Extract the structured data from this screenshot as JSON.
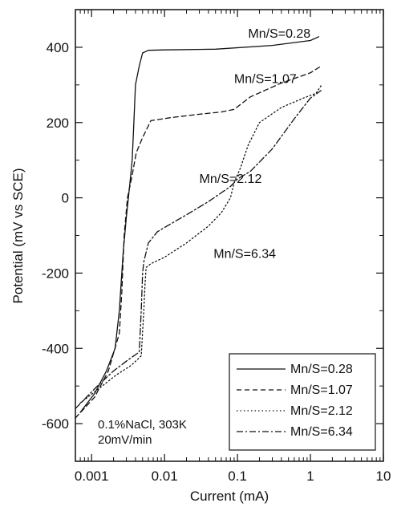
{
  "chart_data": {
    "type": "line",
    "title": "",
    "xlabel": "Current (mA)",
    "ylabel": "Potential (mV vs SCE)",
    "x_scale": "log",
    "xlim": [
      0.0006,
      10
    ],
    "ylim": [
      -700,
      500
    ],
    "x_ticks": [
      0.001,
      0.01,
      0.1,
      1,
      10
    ],
    "x_tick_labels": [
      "0.001",
      "0.01",
      "0.1",
      "1",
      "10"
    ],
    "y_ticks": [
      -600,
      -400,
      -200,
      0,
      200,
      400
    ],
    "y_tick_labels": [
      "-600",
      "-400",
      "-200",
      "0",
      "200",
      "400"
    ],
    "grid": false,
    "legend_position": "bottom-right",
    "note_lines": [
      "0.1%NaCl, 303K",
      "20mV/min"
    ],
    "series": [
      {
        "name": "Mn/S=0.28",
        "style": "solid",
        "x": [
          0.0007,
          0.0011,
          0.0016,
          0.0021,
          0.0024,
          0.0027,
          0.003,
          0.0032,
          0.0034,
          0.0036,
          0.0038,
          0.004,
          0.0045,
          0.005,
          0.006,
          0.01,
          0.05,
          0.3,
          1.0,
          1.3
        ],
        "y": [
          -570,
          -520,
          -460,
          -400,
          -300,
          -150,
          -50,
          0,
          50,
          100,
          200,
          300,
          350,
          385,
          392,
          393,
          395,
          405,
          418,
          428
        ]
      },
      {
        "name": "Mn/S=1.07",
        "style": "dashed",
        "x": [
          0.0006,
          0.0011,
          0.0017,
          0.0024,
          0.0026,
          0.0028,
          0.0031,
          0.0036,
          0.0041,
          0.005,
          0.0065,
          0.012,
          0.03,
          0.06,
          0.09,
          0.15,
          0.4,
          1.0,
          1.4
        ],
        "y": [
          -585,
          -530,
          -460,
          -360,
          -250,
          -100,
          0,
          60,
          120,
          160,
          205,
          213,
          222,
          228,
          235,
          268,
          305,
          332,
          350
        ]
      },
      {
        "name": "Mn/S=2.12",
        "style": "dotted",
        "x": [
          0.0007,
          0.0013,
          0.0022,
          0.0035,
          0.0048,
          0.0052,
          0.0054,
          0.0056,
          0.0065,
          0.01,
          0.02,
          0.04,
          0.06,
          0.08,
          0.09,
          0.11,
          0.14,
          0.2,
          0.4,
          0.8,
          1.2,
          1.4
        ],
        "y": [
          -545,
          -505,
          -470,
          -445,
          -420,
          -300,
          -230,
          -185,
          -175,
          -158,
          -120,
          -75,
          -40,
          0,
          40,
          80,
          140,
          200,
          240,
          265,
          278,
          298
        ]
      },
      {
        "name": "Mn/S=6.34",
        "style": "dashdot",
        "x": [
          0.0006,
          0.0012,
          0.002,
          0.0032,
          0.0045,
          0.0048,
          0.005,
          0.0052,
          0.006,
          0.008,
          0.012,
          0.02,
          0.04,
          0.08,
          0.1,
          0.15,
          0.3,
          0.6,
          1.0,
          1.4
        ],
        "y": [
          -560,
          -500,
          -460,
          -430,
          -410,
          -300,
          -200,
          -170,
          -120,
          -90,
          -70,
          -45,
          -10,
          30,
          50,
          70,
          130,
          210,
          265,
          285
        ]
      }
    ],
    "annotations": [
      {
        "text": "Mn/S=0.28",
        "x": 0.14,
        "y": 425
      },
      {
        "text": "Mn/S=1.07",
        "x": 0.09,
        "y": 305
      },
      {
        "text": "Mn/S=2.12",
        "x": 0.03,
        "y": 40
      },
      {
        "text": "Mn/S=6.34",
        "x": 0.047,
        "y": -160
      }
    ]
  }
}
